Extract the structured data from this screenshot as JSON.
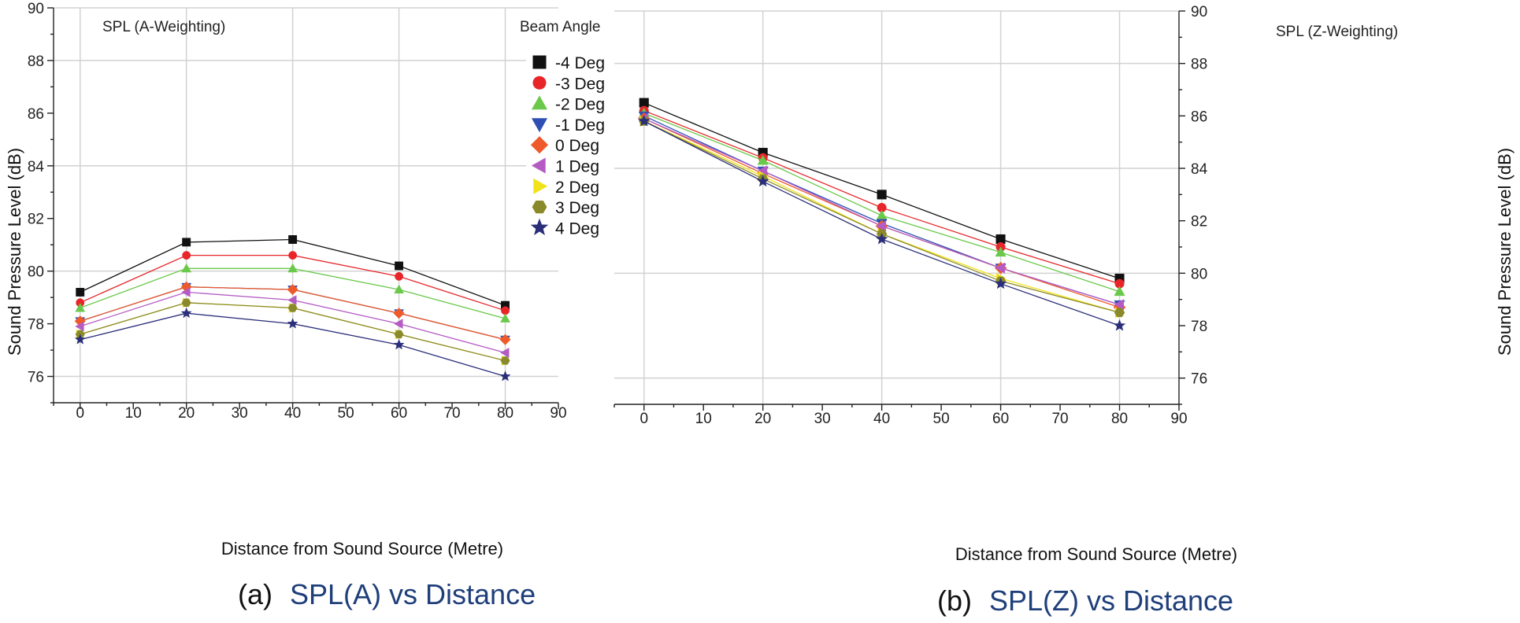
{
  "colors": {
    "-4 Deg": "#111111",
    "-3 Deg": "#e8262a",
    "-2 Deg": "#6ac94a",
    "-1 Deg": "#2e4fb3",
    "0 Deg": "#ef5a2a",
    "1 Deg": "#b55cc4",
    "2 Deg": "#f2e21a",
    "3 Deg": "#8a8a2a",
    "4 Deg": "#2b2f7a"
  },
  "legend": {
    "title": "Beam Angle",
    "entries": [
      {
        "label": "-4 Deg",
        "marker": "square-icon"
      },
      {
        "label": "-3 Deg",
        "marker": "circle-icon"
      },
      {
        "label": "-2 Deg",
        "marker": "triangle-up-icon"
      },
      {
        "label": "-1 Deg",
        "marker": "triangle-down-icon"
      },
      {
        "label": "0 Deg",
        "marker": "diamond-icon"
      },
      {
        "label": "1 Deg",
        "marker": "triangle-left-icon"
      },
      {
        "label": "2 Deg",
        "marker": "triangle-right-icon"
      },
      {
        "label": "3 Deg",
        "marker": "hexagon-icon"
      },
      {
        "label": "4 Deg",
        "marker": "star-icon"
      }
    ]
  },
  "chart_data": [
    {
      "type": "line",
      "title": "SPL (A-Weighting)",
      "caption_prefix": "(a)",
      "caption": "SPL(A) vs Distance",
      "xlabel": "Distance from Sound Source (Metre)",
      "ylabel": "Sound Pressure Level (dB)",
      "xlim": [
        -5,
        90
      ],
      "ylim": [
        75,
        90
      ],
      "xticks": [
        0,
        10,
        20,
        30,
        40,
        50,
        60,
        70,
        80,
        90
      ],
      "yticks": [
        76,
        78,
        80,
        82,
        84,
        86,
        88,
        90
      ],
      "y_axis_side": "left",
      "grid": true,
      "x": [
        0,
        20,
        40,
        60,
        80
      ],
      "series": [
        {
          "name": "-4 Deg",
          "values": [
            79.2,
            81.1,
            81.2,
            80.2,
            78.7
          ]
        },
        {
          "name": "-3 Deg",
          "values": [
            78.8,
            80.6,
            80.6,
            79.8,
            78.5
          ]
        },
        {
          "name": "-2 Deg",
          "values": [
            78.6,
            80.1,
            80.1,
            79.3,
            78.2
          ]
        },
        {
          "name": "-1 Deg",
          "values": [
            78.1,
            79.4,
            79.3,
            78.4,
            77.4
          ]
        },
        {
          "name": "0 Deg",
          "values": [
            78.1,
            79.4,
            79.3,
            78.4,
            77.4
          ]
        },
        {
          "name": "1 Deg",
          "values": [
            77.9,
            79.2,
            78.9,
            78.0,
            76.9
          ]
        },
        {
          "name": "2 Deg",
          "values": [
            77.6,
            78.8,
            78.6,
            77.6,
            76.6
          ]
        },
        {
          "name": "3 Deg",
          "values": [
            77.6,
            78.8,
            78.6,
            77.6,
            76.6
          ]
        },
        {
          "name": "4 Deg",
          "values": [
            77.4,
            78.4,
            78.0,
            77.2,
            76.0
          ]
        }
      ]
    },
    {
      "type": "line",
      "title": "SPL (Z-Weighting)",
      "caption_prefix": "(b)",
      "caption": "SPL(Z) vs Distance",
      "xlabel": "Distance from Sound Source (Metre)",
      "ylabel": "Sound Pressure Level (dB)",
      "xlim": [
        -5,
        90
      ],
      "ylim": [
        75,
        90
      ],
      "xticks": [
        0,
        10,
        20,
        30,
        40,
        50,
        60,
        70,
        80,
        90
      ],
      "yticks": [
        76,
        78,
        80,
        82,
        84,
        86,
        88,
        90
      ],
      "y_axis_side": "right",
      "grid": true,
      "x": [
        0,
        20,
        40,
        60,
        80
      ],
      "series": [
        {
          "name": "-4 Deg",
          "values": [
            86.5,
            84.6,
            83.0,
            81.3,
            79.8
          ]
        },
        {
          "name": "-3 Deg",
          "values": [
            86.2,
            84.4,
            82.5,
            81.0,
            79.6
          ]
        },
        {
          "name": "-2 Deg",
          "values": [
            86.1,
            84.3,
            82.2,
            80.8,
            79.3
          ]
        },
        {
          "name": "-1 Deg",
          "values": [
            86.0,
            83.9,
            81.9,
            80.2,
            78.8
          ]
        },
        {
          "name": "0 Deg",
          "values": [
            85.9,
            83.8,
            81.8,
            80.2,
            78.7
          ]
        },
        {
          "name": "1 Deg",
          "values": [
            85.9,
            83.9,
            81.8,
            80.2,
            78.8
          ]
        },
        {
          "name": "2 Deg",
          "values": [
            85.8,
            83.7,
            81.5,
            79.8,
            78.5
          ]
        },
        {
          "name": "3 Deg",
          "values": [
            85.8,
            83.6,
            81.5,
            79.7,
            78.5
          ]
        },
        {
          "name": "4 Deg",
          "values": [
            85.8,
            83.5,
            81.3,
            79.6,
            78.0
          ]
        }
      ]
    }
  ]
}
